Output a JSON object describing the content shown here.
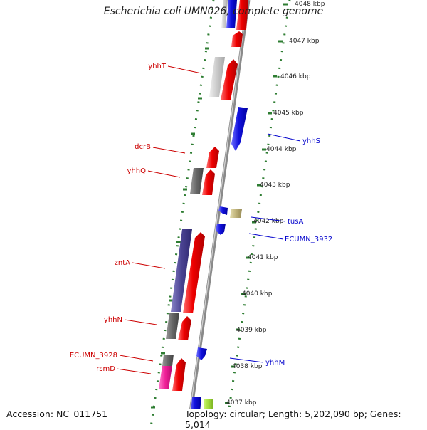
{
  "title": "Escherichia coli UMN026, complete genome",
  "footer": {
    "accession": "Accession: NC_011751",
    "summary": "Topology: circular; Length: 5,202,090 bp; Genes: 5,014"
  },
  "colors": {
    "forward_label": "#cc0000",
    "reverse_label": "#0000cc",
    "scale_tick": "#2e7d32",
    "backbone": "#8a8a8a"
  },
  "scale_ticks": [
    "4048 kbp",
    "4047 kbp",
    "4046 kbp",
    "4045 kbp",
    "4044 kbp",
    "4043 kbp",
    "4042 kbp",
    "4041 kbp",
    "4040 kbp",
    "4039 kbp",
    "4038 kbp",
    "4037 kbp"
  ],
  "forward_labels": [
    "yhhT",
    "dcrB",
    "yhhQ",
    "zntA",
    "yhhN",
    "ECUMN_3928",
    "rsmD"
  ],
  "reverse_labels": [
    "yhhS",
    "tusA",
    "ECUMN_3932",
    "yhhM"
  ]
}
